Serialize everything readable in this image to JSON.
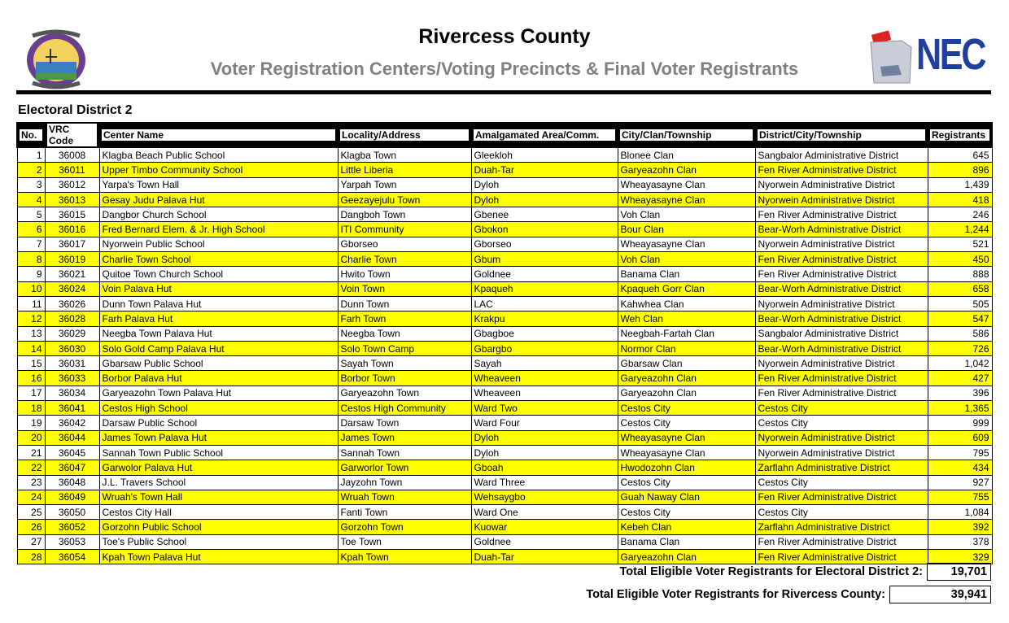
{
  "header": {
    "title": "Rivercess County",
    "subtitle": "Voter Registration Centers/Voting Precincts & Final Voter Registrants",
    "logo_right_text": "NEC"
  },
  "district_title": "Electoral District 2",
  "columns": [
    "No.",
    "VRC Code",
    "Center Name",
    "Locality/Address",
    "Amalgamated Area/Comm.",
    "City/Clan/Township",
    "District/City/Township",
    "Registrants"
  ],
  "rows": [
    [
      "1",
      "36008",
      "Klagba Beach Public School",
      "Klagba Town",
      "Gleekloh",
      "Blonee Clan",
      "Sangbalor Administrative District",
      "645"
    ],
    [
      "2",
      "36011",
      "Upper Timbo Community School",
      "Little Liberia",
      "Duah-Tar",
      "Garyeazohn Clan",
      "Fen River Administrative District",
      "896"
    ],
    [
      "3",
      "36012",
      "Yarpa's Town Hall",
      "Yarpah Town",
      "Dyloh",
      "Wheayasayne Clan",
      "Nyorwein Administrative District",
      "1,439"
    ],
    [
      "4",
      "36013",
      "Gesay Judu Palava Hut",
      "Geezayejulu Town",
      "Dyloh",
      "Wheayasayne Clan",
      "Nyorwein Administrative District",
      "418"
    ],
    [
      "5",
      "36015",
      "Dangbor Church School",
      "Dangboh Town",
      "Gbenee",
      "Voh Clan",
      "Fen River Administrative District",
      "246"
    ],
    [
      "6",
      "36016",
      "Fred Bernard Elem. & Jr. High School",
      "ITI Community",
      "Gbokon",
      "Bour Clan",
      "Bear-Worh Administrative District",
      "1,244"
    ],
    [
      "7",
      "36017",
      "Nyorwein Public School",
      "Gborseo",
      "Gborseo",
      "Wheayasayne Clan",
      "Nyorwein Administrative District",
      "521"
    ],
    [
      "8",
      "36019",
      "Charlie Town School",
      "Charlie Town",
      "Gbum",
      "Voh Clan",
      "Fen River Administrative District",
      "450"
    ],
    [
      "9",
      "36021",
      "Quitoe Town Church School",
      "Hwito Town",
      "Goldnee",
      "Banama Clan",
      "Fen River Administrative District",
      "888"
    ],
    [
      "10",
      "36024",
      "Voin Palava Hut",
      "Voin Town",
      "Kpaqueh",
      "Kpaqueh Gorr Clan",
      "Bear-Worh Administrative District",
      "658"
    ],
    [
      "11",
      "36026",
      "Dunn Town Palava Hut",
      "Dunn Town",
      "LAC",
      "Kahwhea Clan",
      "Nyorwein Administrative District",
      "505"
    ],
    [
      "12",
      "36028",
      "Farh Palava Hut",
      "Farh Town",
      "Krakpu",
      "Weh Clan",
      "Bear-Worh Administrative District",
      "547"
    ],
    [
      "13",
      "36029",
      "Neegba Town Palava Hut",
      "Neegba Town",
      "Gbagboe",
      "Neegbah-Fartah Clan",
      "Sangbalor Administrative District",
      "586"
    ],
    [
      "14",
      "36030",
      "Solo Gold Camp Palava Hut",
      "Solo Town Camp",
      "Gbargbo",
      "Normor Clan",
      "Bear-Worh Administrative District",
      "726"
    ],
    [
      "15",
      "36031",
      "Gbarsaw Public School",
      "Sayah Town",
      "Sayah",
      "Gbarsaw Clan",
      "Nyorwein Administrative District",
      "1,042"
    ],
    [
      "16",
      "36033",
      "Borbor Palava Hut",
      "Borbor Town",
      "Wheaveen",
      "Garyeazohn Clan",
      "Fen River Administrative District",
      "427"
    ],
    [
      "17",
      "36034",
      "Garyeazohn Town Palava Hut",
      "Garyeazohn Town",
      "Wheaveen",
      "Garyeazohn Clan",
      "Fen River Administrative District",
      "396"
    ],
    [
      "18",
      "36041",
      "Cestos High School",
      "Cestos High Community",
      "Ward Two",
      "Cestos City",
      "Cestos City",
      "1,365"
    ],
    [
      "19",
      "36042",
      "Darsaw Public School",
      "Darsaw Town",
      "Ward Four",
      "Cestos City",
      "Cestos City",
      "999"
    ],
    [
      "20",
      "36044",
      "James Town Palava Hut",
      "James Town",
      "Dyloh",
      "Wheayasayne Clan",
      "Nyorwein Administrative District",
      "609"
    ],
    [
      "21",
      "36045",
      "Sannah Town Public School",
      "Sannah Town",
      "Dyloh",
      "Wheayasayne Clan",
      "Nyorwein Administrative District",
      "795"
    ],
    [
      "22",
      "36047",
      "Garwolor Palava Hut",
      "Garworlor Town",
      "Gboah",
      "Hwodozohn Clan",
      "Zarflahn Administrative District",
      "434"
    ],
    [
      "23",
      "36048",
      "J.L. Travers School",
      "Jayzohn Town",
      "Ward Three",
      "Cestos City",
      "Cestos City",
      "927"
    ],
    [
      "24",
      "36049",
      "Wruah's Town Hall",
      "Wruah Town",
      "Wehsaygbo",
      "Guah Naway Clan",
      "Fen River Administrative District",
      "755"
    ],
    [
      "25",
      "36050",
      "Cestos City Hall",
      "Fanti Town",
      "Ward One",
      "Cestos City",
      "Cestos City",
      "1,084"
    ],
    [
      "26",
      "36052",
      "Gorzohn Public School",
      "Gorzohn Town",
      "Kuowar",
      "Kebeh Clan",
      "Zarflahn Administrative District",
      "392"
    ],
    [
      "27",
      "36053",
      "Toe's Public School",
      "Toe Town",
      "Goldnee",
      "Banama Clan",
      "Fen River Administrative District",
      "378"
    ],
    [
      "28",
      "36054",
      "Kpah Town Palava Hut",
      "Kpah Town",
      "Duah-Tar",
      "Garyeazohn Clan",
      "Fen River Administrative District",
      "329"
    ]
  ],
  "totals": {
    "district_label": "Total Eligible Voter Registrants for Electoral District 2:",
    "district_value": "19,701",
    "county_label": "Total Eligible Voter Registrants for Rivercess County:",
    "county_value": "39,941"
  },
  "colors": {
    "highlight": "#ffff00",
    "subtitle": "#808080",
    "nec_blue": "#1f3f9f"
  }
}
